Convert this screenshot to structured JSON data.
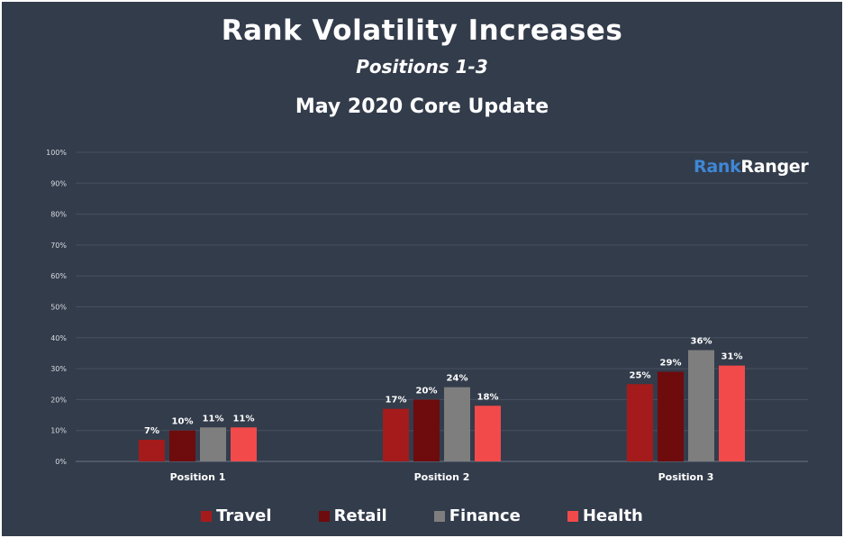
{
  "chart_data": {
    "type": "bar",
    "title": "Rank Volatility Increases",
    "subtitle": "Positions 1-3",
    "subtitle2": "May 2020 Core Update",
    "categories": [
      "Position 1",
      "Position 2",
      "Position 3"
    ],
    "series": [
      {
        "name": "Travel",
        "color": "#a51b1b",
        "values": [
          7,
          17,
          25
        ],
        "labels": [
          "7%",
          "17%",
          "25%"
        ]
      },
      {
        "name": "Retail",
        "color": "#6e0b0d",
        "values": [
          10,
          20,
          29
        ],
        "labels": [
          "10%",
          "20%",
          "29%"
        ]
      },
      {
        "name": "Finance",
        "color": "#7e7e7e",
        "values": [
          11,
          24,
          36
        ],
        "labels": [
          "11%",
          "24%",
          "36%"
        ]
      },
      {
        "name": "Health",
        "color": "#f24a4a",
        "values": [
          11,
          18,
          31
        ],
        "labels": [
          "11%",
          "18%",
          "31%"
        ]
      }
    ],
    "y_ticks": [
      "0%",
      "10%",
      "20%",
      "30%",
      "40%",
      "50%",
      "60%",
      "70%",
      "80%",
      "90%",
      "100%"
    ],
    "ylim": [
      0,
      100
    ],
    "grid": true,
    "legend_position": "bottom"
  },
  "logo": {
    "part1": "Rank",
    "part2": "Ranger"
  }
}
